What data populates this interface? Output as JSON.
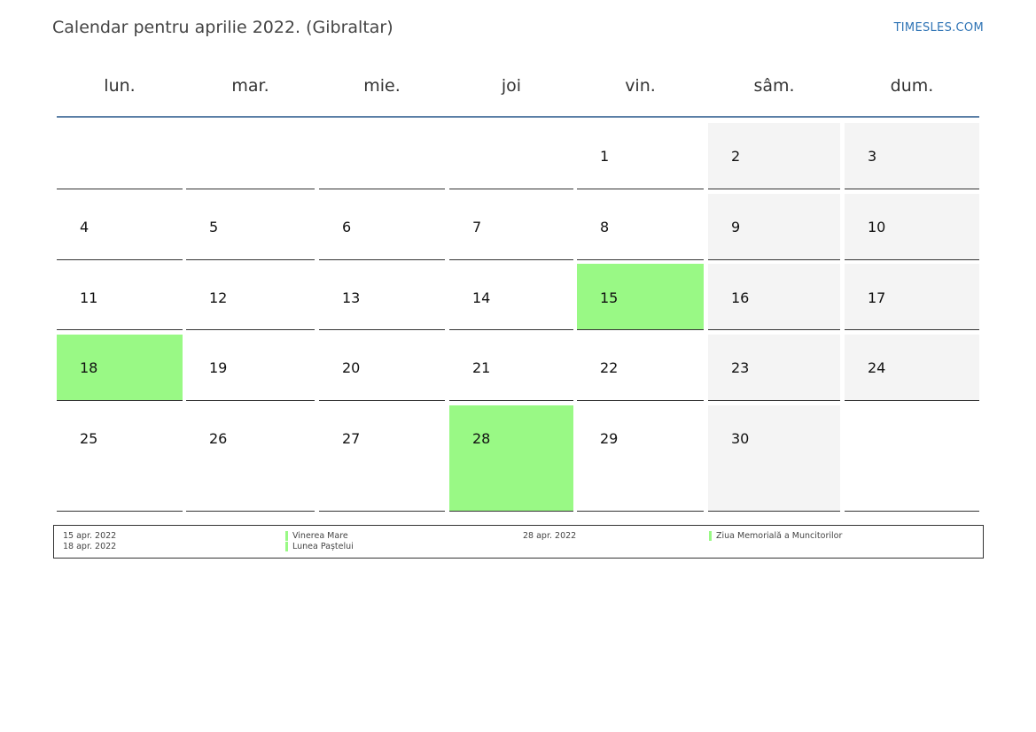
{
  "title": "Calendar pentru aprilie 2022. (Gibraltar)",
  "brand": "TIMESLES.COM",
  "colors": {
    "holiday": "#99f985",
    "weekend": "#f4f4f4",
    "rule": "#5b7fa6"
  },
  "weekdays": [
    "lun.",
    "mar.",
    "mie.",
    "joi",
    "vin.",
    "sâm.",
    "dum."
  ],
  "weeks": [
    [
      "",
      "",
      "",
      "",
      "1",
      "2",
      "3"
    ],
    [
      "4",
      "5",
      "6",
      "7",
      "8",
      "9",
      "10"
    ],
    [
      "11",
      "12",
      "13",
      "14",
      "15",
      "16",
      "17"
    ],
    [
      "18",
      "19",
      "20",
      "21",
      "22",
      "23",
      "24"
    ],
    [
      "25",
      "26",
      "27",
      "28",
      "29",
      "30",
      ""
    ]
  ],
  "holiday_days": [
    "15",
    "18",
    "28"
  ],
  "legend": [
    {
      "date": "15 apr. 2022",
      "name": "Vinerea Mare"
    },
    {
      "date": "18 apr. 2022",
      "name": "Lunea Paștelui"
    },
    {
      "date": "28 apr. 2022",
      "name": "Ziua Memorială a Muncitorilor"
    }
  ]
}
